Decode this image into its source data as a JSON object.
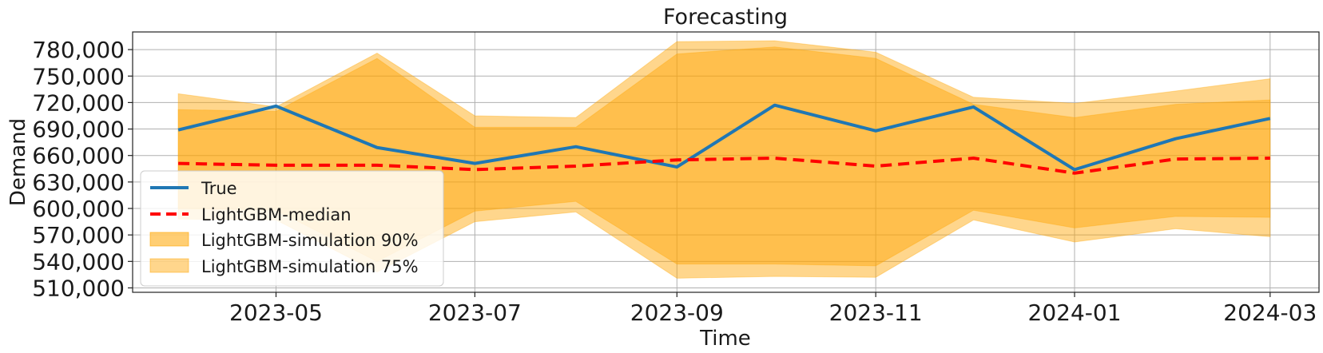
{
  "chart_data": {
    "type": "line",
    "title": "Forecasting",
    "xlabel": "Time",
    "ylabel": "Demand",
    "x": [
      "2023-04-01",
      "2023-05-01",
      "2023-06-01",
      "2023-07-01",
      "2023-08-01",
      "2023-09-01",
      "2023-10-01",
      "2023-11-01",
      "2023-12-01",
      "2024-01-01",
      "2024-02-01",
      "2024-03-01"
    ],
    "xticks": [
      "2023-05",
      "2023-07",
      "2023-09",
      "2023-11",
      "2024-01",
      "2024-03"
    ],
    "ylim": [
      505000,
      800000
    ],
    "yticks": [
      "510,000",
      "540,000",
      "570,000",
      "600,000",
      "630,000",
      "660,000",
      "690,000",
      "720,000",
      "750,000",
      "780,000"
    ],
    "grid": true,
    "legend_position": "lower-left",
    "series": [
      {
        "name": "True",
        "style": "solid",
        "color": "#1f77b4",
        "values": [
          689000,
          716000,
          669000,
          651000,
          670000,
          647000,
          717000,
          688000,
          715000,
          644000,
          679000,
          702000
        ]
      },
      {
        "name": "LightGBM-median",
        "style": "dashed",
        "color": "#ff0000",
        "values": [
          651000,
          649000,
          649000,
          644000,
          648000,
          655000,
          657000,
          648000,
          657000,
          640000,
          656000,
          657000
        ]
      }
    ],
    "bands": [
      {
        "name": "LightGBM-simulation 90%",
        "color": "#ffa500",
        "opacity": 0.45,
        "upper": [
          730000,
          715000,
          776000,
          705000,
          703000,
          789000,
          790000,
          777000,
          726000,
          719000,
          733000,
          747000
        ],
        "lower": [
          588000,
          587000,
          528000,
          585000,
          596000,
          521000,
          523000,
          522000,
          587000,
          562000,
          577000,
          568000
        ]
      },
      {
        "name": "LightGBM-simulation 75%",
        "color": "#ffa500",
        "opacity": 0.45,
        "upper": [
          712000,
          710000,
          770000,
          692000,
          692000,
          775000,
          783000,
          770000,
          718000,
          703000,
          718000,
          723000
        ],
        "lower": [
          600000,
          598000,
          540000,
          597000,
          608000,
          537000,
          537000,
          535000,
          598000,
          578000,
          591000,
          590000
        ]
      }
    ]
  }
}
